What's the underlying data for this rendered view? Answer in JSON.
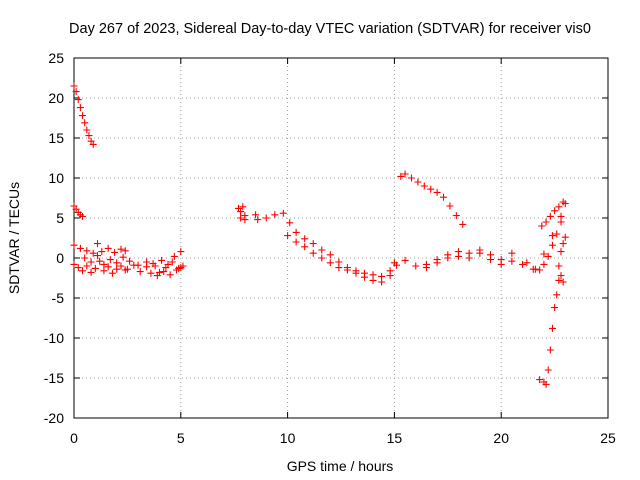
{
  "chart_data": {
    "type": "scatter",
    "title": "Day 267 of 2023, Sidereal Day-to-day VTEC variation (SDTVAR) for receiver vis0",
    "xlabel": "GPS time / hours",
    "ylabel": "SDTVAR / TECUs",
    "xlim": [
      0,
      25
    ],
    "ylim": [
      -20,
      25
    ],
    "xticks": [
      0,
      5,
      10,
      15,
      20,
      25
    ],
    "yticks": [
      25,
      20,
      15,
      10,
      5,
      0,
      -5,
      -10,
      -15,
      -20
    ],
    "grid": true,
    "marker": "+",
    "color": "#ff0000",
    "series": [
      {
        "name": "arc-high-start",
        "x": [
          0.0,
          0.1,
          0.2,
          0.3,
          0.4,
          0.5,
          0.6,
          0.7,
          0.8,
          0.9
        ],
        "y": [
          21.5,
          20.8,
          19.8,
          18.8,
          17.8,
          16.9,
          16.0,
          15.3,
          14.6,
          14.2
        ]
      },
      {
        "name": "arc-start-5",
        "x": [
          0.0,
          0.1,
          0.2,
          0.3,
          0.4
        ],
        "y": [
          6.5,
          6.1,
          5.7,
          5.4,
          5.2
        ]
      },
      {
        "name": "arc-early-a",
        "x": [
          0.0,
          0.3,
          0.6,
          0.9,
          1.1,
          1.3,
          1.6,
          1.9,
          2.2,
          2.4
        ],
        "y": [
          1.6,
          1.2,
          0.9,
          0.6,
          1.8,
          0.8,
          1.2,
          0.7,
          1.1,
          0.9
        ]
      },
      {
        "name": "arc-early-b",
        "x": [
          0.0,
          0.2,
          0.4,
          0.6,
          0.8,
          1.0,
          1.2,
          1.4,
          1.6,
          1.8,
          2.0,
          2.2,
          2.4
        ],
        "y": [
          -0.8,
          -1.2,
          -1.6,
          -1.0,
          -1.8,
          -1.3,
          -0.4,
          -1.6,
          -1.1,
          -1.9,
          -1.4,
          -1.0,
          -1.5
        ]
      },
      {
        "name": "arc-early-c",
        "x": [
          0.5,
          0.8,
          1.1,
          1.4,
          1.7,
          2.0,
          2.3
        ],
        "y": [
          0.0,
          -0.5,
          0.3,
          -0.8,
          -0.2,
          -0.6,
          0.1
        ]
      },
      {
        "name": "arc-mid-a",
        "x": [
          2.5,
          2.8,
          3.1,
          3.4,
          3.7,
          4.0,
          4.3,
          4.6,
          4.9,
          5.1
        ],
        "y": [
          -1.4,
          -0.9,
          -1.7,
          -1.1,
          -0.7,
          -1.8,
          -1.2,
          -0.5,
          -1.3,
          -1.0
        ]
      },
      {
        "name": "arc-mid-b",
        "x": [
          2.6,
          3.0,
          3.4,
          3.8,
          4.1,
          4.4,
          4.7,
          5.0
        ],
        "y": [
          -0.4,
          -0.9,
          -0.5,
          -1.0,
          -0.3,
          -0.8,
          0.2,
          0.8
        ]
      },
      {
        "name": "arc-mid-c",
        "x": [
          3.6,
          3.9,
          4.2,
          4.5,
          4.8,
          5.0
        ],
        "y": [
          -1.9,
          -2.2,
          -1.7,
          -2.1,
          -1.5,
          -1.2
        ]
      },
      {
        "name": "arc-8h",
        "x": [
          7.7,
          7.8,
          7.9,
          8.0,
          8.0,
          7.8
        ],
        "y": [
          6.2,
          5.8,
          6.4,
          5.3,
          4.8,
          5.0
        ]
      },
      {
        "name": "arc-8h-b",
        "x": [
          8.5,
          8.6
        ],
        "y": [
          5.4,
          4.8
        ]
      },
      {
        "name": "arc-9-15-a",
        "x": [
          9.0,
          9.4,
          9.8,
          10.1,
          10.4,
          10.8,
          11.2,
          11.6,
          12.0,
          12.4,
          12.8,
          13.2,
          13.6,
          14.0,
          14.4,
          14.8,
          15.1
        ],
        "y": [
          5.0,
          5.4,
          5.6,
          4.4,
          3.2,
          2.4,
          1.8,
          1.0,
          0.4,
          -0.5,
          -1.2,
          -1.6,
          -1.9,
          -2.1,
          -2.3,
          -1.6,
          -0.9
        ]
      },
      {
        "name": "arc-9-15-b",
        "x": [
          10.0,
          10.4,
          10.8,
          11.2,
          11.6,
          12.0,
          12.4,
          12.8,
          13.2,
          13.6,
          14.0,
          14.4,
          14.8
        ],
        "y": [
          2.8,
          2.0,
          1.4,
          0.6,
          0.0,
          -0.6,
          -1.2,
          -1.5,
          -1.9,
          -2.4,
          -2.8,
          -3.0,
          -2.2
        ]
      },
      {
        "name": "arc-15-21",
        "x": [
          15.0,
          15.5,
          16.0,
          16.5,
          17.0,
          17.5,
          18.0,
          18.5,
          19.0,
          19.5,
          20.0,
          20.5,
          21.0,
          21.5
        ],
        "y": [
          -0.6,
          -0.3,
          -1.0,
          -0.8,
          -0.2,
          0.4,
          0.8,
          0.6,
          1.0,
          0.4,
          -0.2,
          0.6,
          -0.8,
          -1.4
        ]
      },
      {
        "name": "arc-15-21-b",
        "x": [
          16.5,
          17.0,
          17.5,
          18.0,
          18.5,
          19.0,
          19.5,
          20.0,
          20.5
        ],
        "y": [
          -1.2,
          -0.6,
          0.0,
          0.2,
          0.0,
          0.6,
          -0.2,
          -0.8,
          -0.4
        ]
      },
      {
        "name": "arc-high-15",
        "x": [
          15.3,
          15.5,
          15.8,
          16.1,
          16.4,
          16.7,
          17.0,
          17.3,
          17.6,
          17.9,
          18.2
        ],
        "y": [
          10.2,
          10.5,
          10.0,
          9.5,
          9.0,
          8.6,
          8.2,
          7.6,
          6.5,
          5.3,
          4.2
        ]
      },
      {
        "name": "arc-late-rise-a",
        "x": [
          21.2,
          21.6,
          22.0,
          22.4,
          22.8,
          23.0
        ],
        "y": [
          -0.6,
          -1.4,
          0.5,
          2.8,
          5.2,
          6.8
        ]
      },
      {
        "name": "arc-late-rise-b",
        "x": [
          21.9,
          22.1,
          22.3,
          22.5,
          22.7,
          22.9
        ],
        "y": [
          4.0,
          4.5,
          5.2,
          5.9,
          6.4,
          7.0
        ]
      },
      {
        "name": "arc-late-rise-c",
        "x": [
          21.8,
          22.0,
          22.2,
          22.4,
          22.6,
          22.8
        ],
        "y": [
          -1.5,
          -0.8,
          0.2,
          1.6,
          3.0,
          4.5
        ]
      },
      {
        "name": "arc-late-drop",
        "x": [
          21.8,
          22.0,
          22.1,
          22.2,
          22.3,
          22.4,
          22.5,
          22.6,
          22.7,
          22.8,
          22.9
        ],
        "y": [
          -15.2,
          -15.5,
          -15.8,
          -14.0,
          -11.5,
          -8.8,
          -6.2,
          -4.6,
          -2.8,
          -2.2,
          -3.0
        ]
      },
      {
        "name": "arc-late-tail",
        "x": [
          22.7,
          22.8,
          22.9,
          23.0
        ],
        "y": [
          -1.0,
          0.8,
          1.8,
          2.6
        ]
      }
    ]
  }
}
